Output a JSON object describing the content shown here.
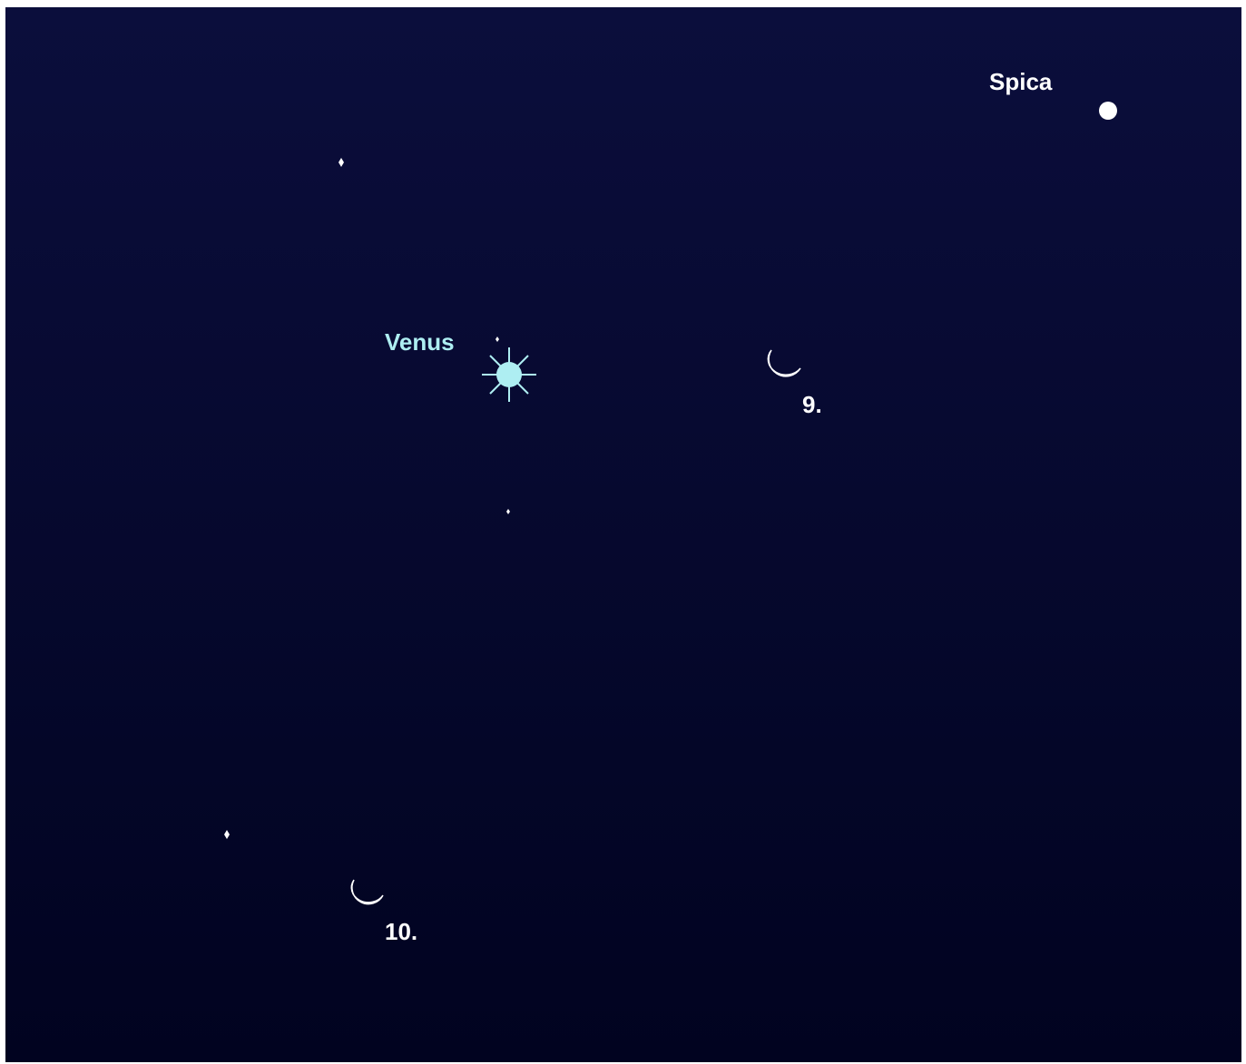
{
  "objects": [
    {
      "label": "Spica"
    },
    {
      "label": "Venus"
    },
    {
      "label": "9."
    },
    {
      "label": "10."
    }
  ]
}
